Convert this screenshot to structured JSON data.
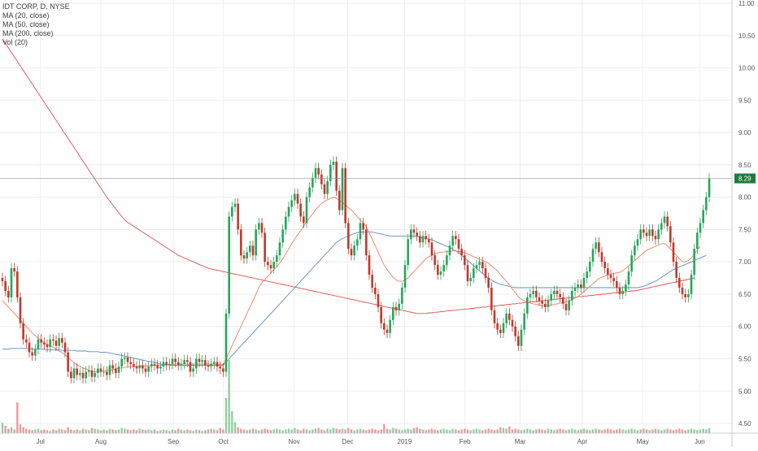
{
  "legend": {
    "symbol": "IDT CORP, D, NYSE",
    "ma20": "MA (20, close)",
    "ma50": "MA (50, close)",
    "ma200": "MA (200, close)",
    "vol": "Vol (20)"
  },
  "last_price_label": "8.29",
  "colors": {
    "up": "#26a65b",
    "down": "#c0392b",
    "ma20": "#f08060",
    "ma50": "#5b8fbf",
    "ma200": "#e05050",
    "vol_up": "#8fcf9f",
    "vol_down": "#e89a9a",
    "price_tag": "#1f7a3e",
    "grid": "#eeeeee"
  },
  "chart_data": {
    "type": "candlestick",
    "title": "IDT CORP, D, NYSE",
    "ylim": [
      4.35,
      11.05
    ],
    "y_ticks": [
      "4.50",
      "5.00",
      "5.50",
      "6.00",
      "6.50",
      "7.00",
      "7.50",
      "8.00",
      "8.50",
      "9.00",
      "9.50",
      "10.00",
      "10.50",
      "11.00"
    ],
    "x_ticks": [
      "Jul",
      "Aug",
      "Sep",
      "Oct",
      "Nov",
      "Dec",
      "2019",
      "Feb",
      "Mar",
      "Apr",
      "May",
      "Jun"
    ],
    "close": [
      6.7,
      6.55,
      6.45,
      6.9,
      6.85,
      6.45,
      6.05,
      5.8,
      5.75,
      5.6,
      5.55,
      5.65,
      5.8,
      5.75,
      5.72,
      5.68,
      5.8,
      5.78,
      5.7,
      5.82,
      5.75,
      5.6,
      5.3,
      5.2,
      5.35,
      5.25,
      5.28,
      5.2,
      5.3,
      5.32,
      5.22,
      5.28,
      5.35,
      5.3,
      5.3,
      5.25,
      5.4,
      5.35,
      5.28,
      5.38,
      5.5,
      5.52,
      5.45,
      5.42,
      5.38,
      5.35,
      5.4,
      5.35,
      5.3,
      5.38,
      5.42,
      5.4,
      5.35,
      5.38,
      5.45,
      5.4,
      5.42,
      5.5,
      5.45,
      5.4,
      5.42,
      5.48,
      5.45,
      5.3,
      5.35,
      5.5,
      5.45,
      5.48,
      5.4,
      5.38,
      5.42,
      5.45,
      5.38,
      5.35,
      5.3,
      6.2,
      7.7,
      7.85,
      7.9,
      7.5,
      7.1,
      7.05,
      7.15,
      7.25,
      7.1,
      7.5,
      7.6,
      7.45,
      7.0,
      6.95,
      6.9,
      7.0,
      7.1,
      7.3,
      7.5,
      7.7,
      7.85,
      7.95,
      8.05,
      7.9,
      7.7,
      7.6,
      8.0,
      8.15,
      8.3,
      8.45,
      8.35,
      8.2,
      8.05,
      8.25,
      8.5,
      8.55,
      8.1,
      7.8,
      8.45,
      7.6,
      7.2,
      7.1,
      7.25,
      7.35,
      7.6,
      7.5,
      7.1,
      6.8,
      6.6,
      6.5,
      6.3,
      6.05,
      5.95,
      5.9,
      6.1,
      6.3,
      6.25,
      6.35,
      6.6,
      6.95,
      7.35,
      7.5,
      7.45,
      7.4,
      7.3,
      7.4,
      7.35,
      7.3,
      7.1,
      6.95,
      6.8,
      6.85,
      6.95,
      7.1,
      7.25,
      7.4,
      7.35,
      7.2,
      7.1,
      6.95,
      6.7,
      6.75,
      6.9,
      6.95,
      7.0,
      6.9,
      6.75,
      6.6,
      6.25,
      6.05,
      5.95,
      5.9,
      6.05,
      6.2,
      6.1,
      6.0,
      5.85,
      5.7,
      5.95,
      6.2,
      6.45,
      6.5,
      6.55,
      6.45,
      6.4,
      6.35,
      6.3,
      6.4,
      6.5,
      6.55,
      6.5,
      6.45,
      6.35,
      6.25,
      6.4,
      6.55,
      6.6,
      6.65,
      6.6,
      6.75,
      6.85,
      7.0,
      7.2,
      7.3,
      7.15,
      7.0,
      6.9,
      6.8,
      6.75,
      6.7,
      6.6,
      6.5,
      6.55,
      6.65,
      6.85,
      7.1,
      7.25,
      7.35,
      7.5,
      7.45,
      7.4,
      7.5,
      7.4,
      7.35,
      7.5,
      7.6,
      7.7,
      7.55,
      7.3,
      7.0,
      6.75,
      6.6,
      6.5,
      6.45,
      6.5,
      6.8,
      7.2,
      7.45,
      7.6,
      7.8,
      8.0,
      8.29
    ],
    "ma20": [
      6.4,
      6.35,
      6.3,
      6.25,
      6.2,
      6.15,
      6.1,
      6.05,
      6.0,
      5.95,
      5.9,
      5.86,
      5.82,
      5.78,
      5.75,
      5.72,
      5.7,
      5.68,
      5.65,
      5.62,
      5.6,
      5.56,
      5.52,
      5.48,
      5.44,
      5.41,
      5.38,
      5.36,
      5.34,
      5.32,
      5.3,
      5.3,
      5.3,
      5.31,
      5.31,
      5.32,
      5.33,
      5.33,
      5.34,
      5.35,
      5.36,
      5.37,
      5.37,
      5.38,
      5.38,
      5.38,
      5.39,
      5.39,
      5.39,
      5.39,
      5.4,
      5.4,
      5.4,
      5.4,
      5.4,
      5.41,
      5.41,
      5.41,
      5.42,
      5.42,
      5.42,
      5.42,
      5.42,
      5.42,
      5.42,
      5.42,
      5.42,
      5.42,
      5.42,
      5.42,
      5.42,
      5.42,
      5.41,
      5.41,
      5.41,
      5.5,
      5.6,
      5.7,
      5.8,
      5.9,
      6.0,
      6.1,
      6.2,
      6.3,
      6.4,
      6.5,
      6.6,
      6.68,
      6.72,
      6.78,
      6.82,
      6.88,
      6.92,
      6.98,
      7.05,
      7.12,
      7.2,
      7.28,
      7.35,
      7.42,
      7.48,
      7.55,
      7.62,
      7.68,
      7.74,
      7.8,
      7.86,
      7.9,
      7.94,
      7.96,
      7.98,
      8.0,
      7.98,
      7.95,
      7.92,
      7.88,
      7.84,
      7.8,
      7.75,
      7.7,
      7.65,
      7.6,
      7.55,
      7.45,
      7.35,
      7.25,
      7.15,
      7.05,
      6.95,
      6.88,
      6.82,
      6.76,
      6.72,
      6.7,
      6.7,
      6.72,
      6.75,
      6.8,
      6.85,
      6.9,
      6.95,
      7.0,
      7.05,
      7.08,
      7.1,
      7.12,
      7.14,
      7.15,
      7.15,
      7.16,
      7.16,
      7.17,
      7.17,
      7.16,
      7.15,
      7.14,
      7.12,
      7.1,
      7.08,
      7.06,
      7.04,
      7.02,
      7.0,
      6.98,
      6.94,
      6.9,
      6.86,
      6.8,
      6.75,
      6.7,
      6.64,
      6.58,
      6.52,
      6.46,
      6.42,
      6.4,
      6.38,
      6.36,
      6.35,
      6.34,
      6.33,
      6.32,
      6.32,
      6.32,
      6.33,
      6.34,
      6.35,
      6.36,
      6.37,
      6.38,
      6.4,
      6.42,
      6.44,
      6.46,
      6.5,
      6.54,
      6.58,
      6.62,
      6.66,
      6.7,
      6.74,
      6.76,
      6.78,
      6.8,
      6.81,
      6.82,
      6.83,
      6.84,
      6.86,
      6.9,
      6.94,
      6.98,
      7.02,
      7.06,
      7.1,
      7.14,
      7.18,
      7.2,
      7.22,
      7.24,
      7.26,
      7.28,
      7.28,
      7.25,
      7.2,
      7.15,
      7.1,
      7.05,
      7.0,
      7.0,
      7.02,
      7.06,
      7.12,
      7.18,
      7.24
    ],
    "ma50": [
      5.65,
      5.65,
      5.65,
      5.66,
      5.66,
      5.66,
      5.66,
      5.66,
      5.66,
      5.66,
      5.65,
      5.65,
      5.65,
      5.65,
      5.65,
      5.64,
      5.64,
      5.64,
      5.64,
      5.64,
      5.63,
      5.63,
      5.63,
      5.63,
      5.63,
      5.62,
      5.62,
      5.62,
      5.62,
      5.61,
      5.61,
      5.61,
      5.61,
      5.6,
      5.6,
      5.6,
      5.59,
      5.58,
      5.57,
      5.56,
      5.55,
      5.54,
      5.53,
      5.52,
      5.51,
      5.5,
      5.49,
      5.48,
      5.47,
      5.46,
      5.45,
      5.44,
      5.43,
      5.42,
      5.41,
      5.41,
      5.4,
      5.4,
      5.4,
      5.4,
      5.4,
      5.4,
      5.4,
      5.4,
      5.4,
      5.4,
      5.4,
      5.4,
      5.4,
      5.4,
      5.4,
      5.4,
      5.4,
      5.4,
      5.4,
      5.45,
      5.5,
      5.55,
      5.6,
      5.65,
      5.7,
      5.75,
      5.8,
      5.85,
      5.9,
      5.95,
      6.0,
      6.05,
      6.1,
      6.15,
      6.2,
      6.25,
      6.3,
      6.35,
      6.4,
      6.45,
      6.5,
      6.55,
      6.6,
      6.65,
      6.7,
      6.75,
      6.8,
      6.85,
      6.9,
      6.95,
      7.0,
      7.05,
      7.1,
      7.15,
      7.2,
      7.25,
      7.3,
      7.33,
      7.36,
      7.38,
      7.4,
      7.42,
      7.44,
      7.45,
      7.46,
      7.46,
      7.46,
      7.46,
      7.46,
      7.45,
      7.44,
      7.43,
      7.42,
      7.41,
      7.4,
      7.4,
      7.4,
      7.4,
      7.4,
      7.4,
      7.4,
      7.4,
      7.4,
      7.39,
      7.38,
      7.37,
      7.36,
      7.35,
      7.34,
      7.32,
      7.3,
      7.28,
      7.26,
      7.24,
      7.22,
      7.2,
      7.17,
      7.14,
      7.1,
      7.06,
      7.02,
      6.98,
      6.94,
      6.9,
      6.86,
      6.82,
      6.78,
      6.75,
      6.72,
      6.69,
      6.67,
      6.65,
      6.64,
      6.63,
      6.62,
      6.61,
      6.6,
      6.6,
      6.6,
      6.6,
      6.6,
      6.6,
      6.6,
      6.6,
      6.6,
      6.6,
      6.6,
      6.6,
      6.6,
      6.6,
      6.6,
      6.6,
      6.6,
      6.6,
      6.6,
      6.6,
      6.6,
      6.6,
      6.6,
      6.6,
      6.6,
      6.6,
      6.6,
      6.6,
      6.6,
      6.6,
      6.6,
      6.6,
      6.6,
      6.6,
      6.6,
      6.6,
      6.6,
      6.6,
      6.6,
      6.6,
      6.6,
      6.6,
      6.61,
      6.62,
      6.64,
      6.66,
      6.68,
      6.7,
      6.73,
      6.76,
      6.79,
      6.82,
      6.85,
      6.88,
      6.9,
      6.92,
      6.94,
      6.96,
      6.98,
      7.0,
      7.02,
      7.04,
      7.06,
      7.08,
      7.1
    ],
    "ma200": [
      10.45,
      10.38,
      10.31,
      10.24,
      10.17,
      10.1,
      10.03,
      9.96,
      9.89,
      9.82,
      9.75,
      9.68,
      9.61,
      9.54,
      9.47,
      9.4,
      9.33,
      9.26,
      9.19,
      9.12,
      9.05,
      8.98,
      8.91,
      8.84,
      8.77,
      8.7,
      8.63,
      8.56,
      8.49,
      8.42,
      8.35,
      8.28,
      8.21,
      8.14,
      8.07,
      8.0,
      7.94,
      7.88,
      7.82,
      7.76,
      7.7,
      7.65,
      7.61,
      7.58,
      7.55,
      7.52,
      7.49,
      7.46,
      7.43,
      7.4,
      7.37,
      7.34,
      7.31,
      7.28,
      7.25,
      7.22,
      7.19,
      7.16,
      7.13,
      7.1,
      7.08,
      7.06,
      7.04,
      7.02,
      7.0,
      6.98,
      6.96,
      6.94,
      6.92,
      6.9,
      6.89,
      6.88,
      6.87,
      6.86,
      6.85,
      6.84,
      6.83,
      6.82,
      6.81,
      6.8,
      6.79,
      6.78,
      6.77,
      6.76,
      6.75,
      6.74,
      6.73,
      6.72,
      6.71,
      6.7,
      6.69,
      6.68,
      6.67,
      6.66,
      6.65,
      6.64,
      6.63,
      6.62,
      6.61,
      6.6,
      6.59,
      6.58,
      6.57,
      6.56,
      6.55,
      6.54,
      6.53,
      6.52,
      6.51,
      6.5,
      6.49,
      6.48,
      6.47,
      6.46,
      6.45,
      6.44,
      6.43,
      6.42,
      6.41,
      6.4,
      6.39,
      6.38,
      6.37,
      6.36,
      6.35,
      6.34,
      6.33,
      6.32,
      6.31,
      6.3,
      6.29,
      6.28,
      6.27,
      6.26,
      6.25,
      6.24,
      6.23,
      6.22,
      6.21,
      6.2,
      6.2,
      6.2,
      6.2,
      6.21,
      6.21,
      6.22,
      6.22,
      6.23,
      6.23,
      6.24,
      6.24,
      6.25,
      6.25,
      6.26,
      6.26,
      6.27,
      6.27,
      6.28,
      6.28,
      6.29,
      6.29,
      6.3,
      6.3,
      6.31,
      6.31,
      6.32,
      6.32,
      6.33,
      6.33,
      6.34,
      6.34,
      6.35,
      6.35,
      6.36,
      6.36,
      6.37,
      6.37,
      6.38,
      6.38,
      6.39,
      6.39,
      6.4,
      6.4,
      6.41,
      6.41,
      6.42,
      6.42,
      6.43,
      6.43,
      6.44,
      6.44,
      6.45,
      6.45,
      6.46,
      6.46,
      6.47,
      6.47,
      6.48,
      6.48,
      6.49,
      6.49,
      6.5,
      6.5,
      6.51,
      6.51,
      6.52,
      6.52,
      6.53,
      6.53,
      6.54,
      6.54,
      6.55,
      6.55,
      6.56,
      6.57,
      6.58,
      6.59,
      6.6,
      6.61,
      6.62,
      6.63,
      6.64,
      6.65,
      6.66,
      6.67,
      6.68,
      6.69,
      6.7,
      6.71,
      6.72,
      6.73,
      6.74,
      6.75
    ],
    "volume": [
      0.14,
      0.1,
      0.06,
      0.08,
      0.05,
      0.42,
      0.12,
      0.08,
      0.06,
      0.05,
      0.04,
      0.05,
      0.06,
      0.04,
      0.05,
      0.04,
      0.03,
      0.05,
      0.04,
      0.06,
      0.05,
      0.04,
      0.08,
      0.05,
      0.04,
      0.05,
      0.04,
      0.06,
      0.05,
      0.04,
      0.07,
      0.06,
      0.05,
      0.04,
      0.05,
      0.04,
      0.06,
      0.05,
      0.04,
      0.05,
      0.07,
      0.06,
      0.05,
      0.04,
      0.05,
      0.04,
      0.06,
      0.05,
      0.04,
      0.05,
      0.04,
      0.05,
      0.03,
      0.04,
      0.05,
      0.04,
      0.03,
      0.05,
      0.04,
      0.06,
      0.05,
      0.04,
      0.05,
      0.04,
      0.03,
      0.05,
      0.04,
      0.03,
      0.04,
      0.05,
      0.06,
      0.05,
      0.04,
      0.07,
      0.05,
      0.48,
      1.0,
      0.3,
      0.15,
      0.08,
      0.06,
      0.05,
      0.04,
      0.05,
      0.06,
      0.05,
      0.04,
      0.05,
      0.06,
      0.05,
      0.04,
      0.05,
      0.06,
      0.05,
      0.04,
      0.05,
      0.06,
      0.05,
      0.07,
      0.05,
      0.04,
      0.06,
      0.05,
      0.04,
      0.05,
      0.06,
      0.07,
      0.05,
      0.04,
      0.06,
      0.05,
      0.07,
      0.06,
      0.05,
      0.06,
      0.05,
      0.07,
      0.05,
      0.04,
      0.05,
      0.06,
      0.05,
      0.04,
      0.05,
      0.06,
      0.05,
      0.04,
      0.05,
      0.12,
      0.06,
      0.05,
      0.07,
      0.06,
      0.05,
      0.04,
      0.05,
      0.06,
      0.05,
      0.07,
      0.08,
      0.06,
      0.05,
      0.04,
      0.05,
      0.06,
      0.05,
      0.04,
      0.05,
      0.06,
      0.05,
      0.04,
      0.06,
      0.05,
      0.04,
      0.05,
      0.06,
      0.05,
      0.04,
      0.05,
      0.06,
      0.05,
      0.04,
      0.05,
      0.06,
      0.05,
      0.04,
      0.05,
      0.08,
      0.07,
      0.06,
      0.09,
      0.05,
      0.06,
      0.05,
      0.04,
      0.05,
      0.06,
      0.05,
      0.04,
      0.05,
      0.06,
      0.05,
      0.04,
      0.06,
      0.05,
      0.04,
      0.05,
      0.06,
      0.05,
      0.04,
      0.05,
      0.06,
      0.05,
      0.04,
      0.05,
      0.06,
      0.05,
      0.04,
      0.05,
      0.06,
      0.05,
      0.04,
      0.05,
      0.06,
      0.05,
      0.04,
      0.05,
      0.06,
      0.05,
      0.04,
      0.05,
      0.06,
      0.05,
      0.04,
      0.05,
      0.06,
      0.05,
      0.04,
      0.05,
      0.06,
      0.05,
      0.04,
      0.05,
      0.06,
      0.05,
      0.04,
      0.05,
      0.06,
      0.05,
      0.04,
      0.05,
      0.06,
      0.05,
      0.04,
      0.05,
      0.06,
      0.05,
      0.07
    ]
  }
}
